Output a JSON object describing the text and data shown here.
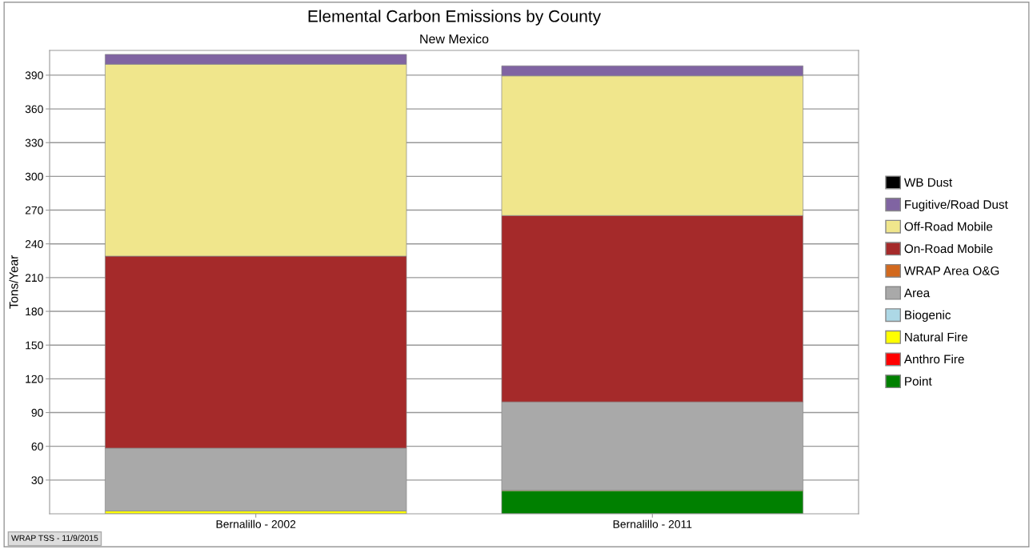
{
  "chart_data": {
    "type": "bar",
    "title": "Elemental Carbon Emissions by County",
    "subtitle": "New Mexico",
    "ylabel": "Tons/Year",
    "categories": [
      "Bernalillo - 2002",
      "Bernalillo - 2011"
    ],
    "stacked": true,
    "series": [
      {
        "name": "Point",
        "color": "#008000",
        "values": [
          0,
          20.5
        ]
      },
      {
        "name": "Anthro Fire",
        "color": "#ff0000",
        "values": [
          0,
          0
        ]
      },
      {
        "name": "Natural Fire",
        "color": "#ffff00",
        "values": [
          2.5,
          0.5
        ]
      },
      {
        "name": "Biogenic",
        "color": "#add8e6",
        "values": [
          0,
          0
        ]
      },
      {
        "name": "Area",
        "color": "#a9a9a9",
        "values": [
          55.9,
          78.5
        ]
      },
      {
        "name": "WRAP Area O&G",
        "color": "#d2691e",
        "values": [
          0,
          0
        ]
      },
      {
        "name": "On-Road Mobile",
        "color": "#a52a2a",
        "values": [
          170.7,
          165.7
        ]
      },
      {
        "name": "Off-Road Mobile",
        "color": "#f0e68c",
        "values": [
          170.6,
          124.2
        ]
      },
      {
        "name": "Fugitive/Road Dust",
        "color": "#8064a2",
        "values": [
          8.8,
          8.9
        ]
      },
      {
        "name": "WB Dust",
        "color": "#000000",
        "values": [
          0,
          0
        ]
      }
    ],
    "ylim": [
      0,
      412
    ],
    "yticks": [
      30,
      60,
      90,
      120,
      150,
      180,
      210,
      240,
      270,
      300,
      330,
      360,
      390
    ],
    "grid": "y",
    "legend": "right",
    "annotations": [
      "WRAP TSS - 11/9/2015"
    ]
  }
}
